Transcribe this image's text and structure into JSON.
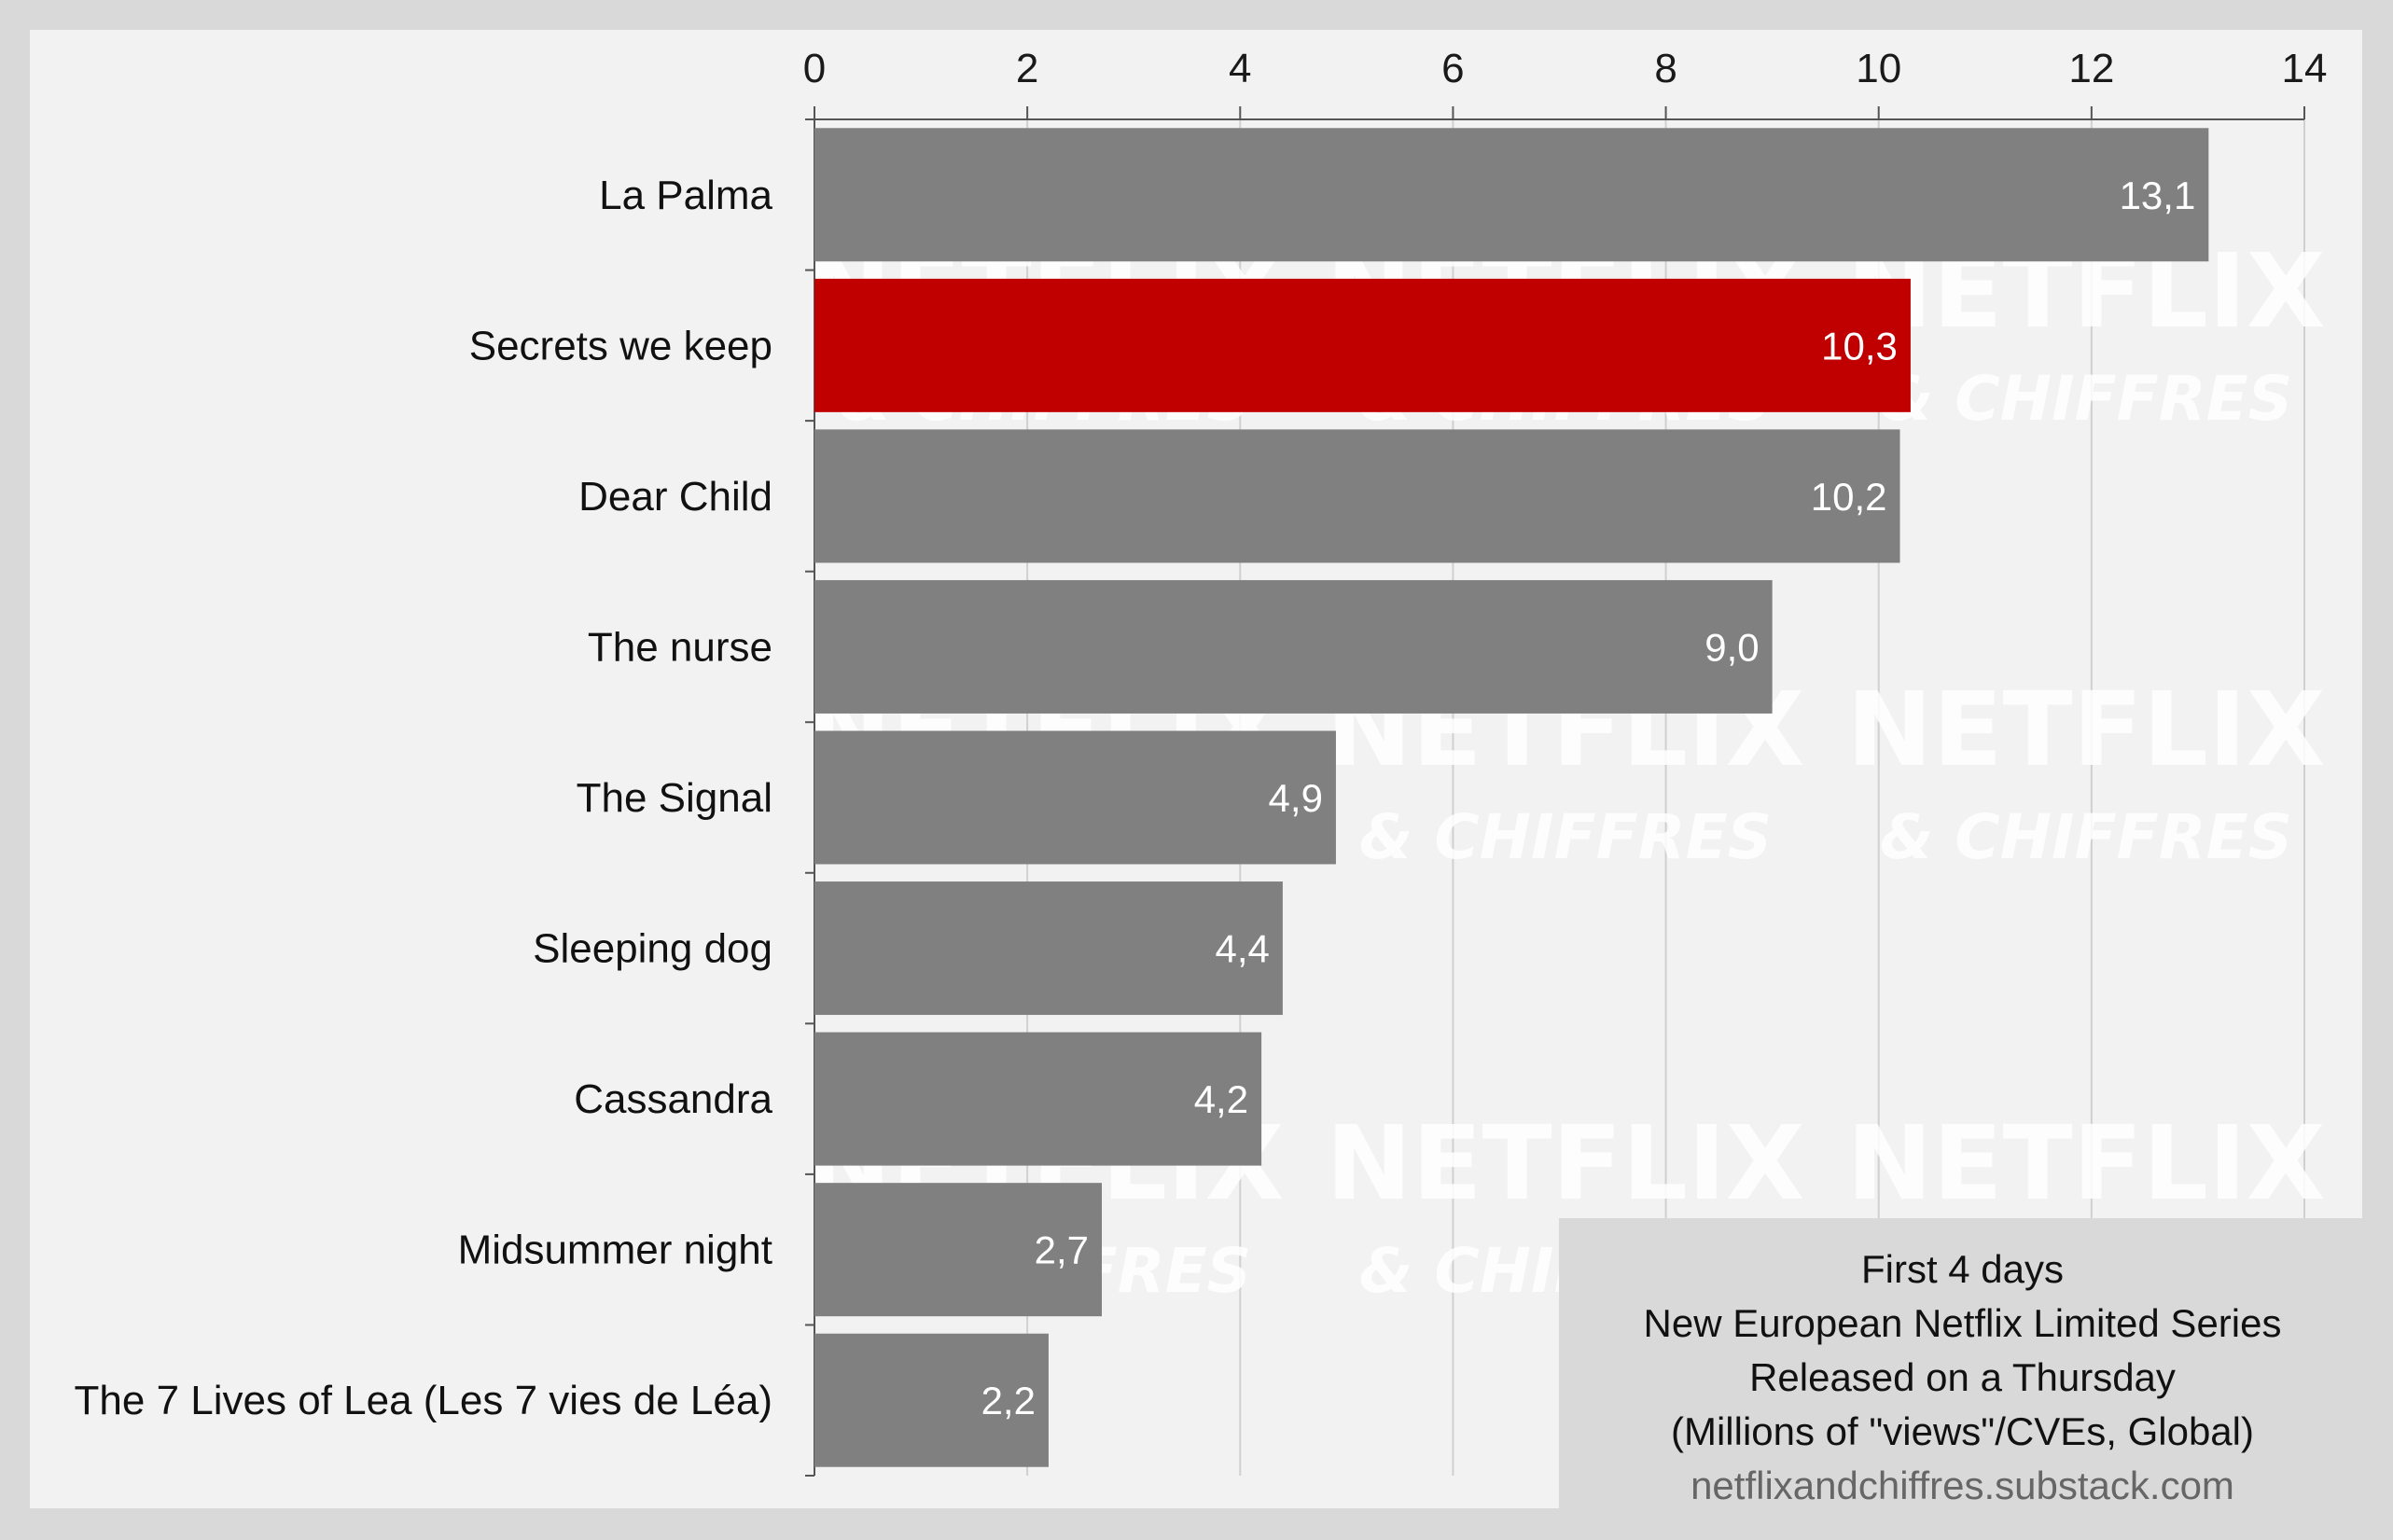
{
  "chart_data": {
    "type": "bar",
    "orientation": "horizontal",
    "categories": [
      "La Palma",
      "Secrets we keep",
      "Dear Child",
      "The nurse",
      "The Signal",
      "Sleeping dog",
      "Cassandra",
      "Midsummer night",
      "The 7 Lives of Lea (Les 7 vies de Léa)"
    ],
    "values": [
      13.1,
      10.3,
      10.2,
      9.0,
      4.9,
      4.4,
      4.2,
      2.7,
      2.2
    ],
    "value_labels": [
      "13,1",
      "10,3",
      "10,2",
      "9,0",
      "4,9",
      "4,4",
      "4,2",
      "2,7",
      "2,2"
    ],
    "highlight_index": 1,
    "xlim": [
      0,
      14
    ],
    "xticks": [
      0,
      2,
      4,
      6,
      8,
      10,
      12,
      14
    ],
    "x_axis_position": "top",
    "grid": true,
    "colors": {
      "bar": "#808080",
      "highlight": "#c00000",
      "plot_background": "#f2f2f2",
      "page_background": "#d9d9d9",
      "gridline": "#d0d0d0"
    }
  },
  "legend_box": {
    "lines": [
      "First 4 days",
      "New European Netflix Limited Series",
      "Released on a Thursday",
      "(Millions of \"views\"/CVEs, Global)"
    ],
    "source": "netflixandchiffres.substack.com"
  },
  "watermark": {
    "line1": "NETFLIX",
    "line2": "& CHIFFRES"
  }
}
